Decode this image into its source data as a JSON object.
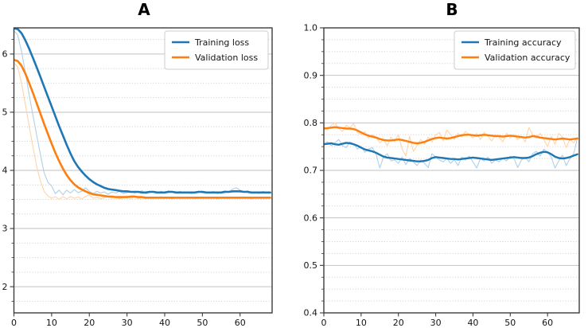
{
  "figure": {
    "background": "#ffffff"
  },
  "chart_data": [
    {
      "type": "line",
      "title": "A",
      "xlabel": "",
      "ylabel": "",
      "xlim": [
        0,
        68.5
      ],
      "ylim": [
        1.55,
        6.45
      ],
      "xticks": [
        0,
        10,
        20,
        30,
        40,
        50,
        60
      ],
      "xtick_labels": [
        "0",
        "10",
        "20",
        "30",
        "40",
        "50",
        "60"
      ],
      "yticks": [
        2,
        3,
        4,
        5,
        6
      ],
      "ytick_labels": [
        "2",
        "3",
        "4",
        "5",
        "6"
      ],
      "y_minor_step": 0.25,
      "grid": "horizontal: solid major, dotted minor",
      "legend_position": "upper right",
      "x": [
        0,
        1,
        2,
        3,
        4,
        5,
        6,
        7,
        8,
        9,
        10,
        11,
        12,
        13,
        14,
        15,
        16,
        17,
        18,
        19,
        20,
        21,
        22,
        23,
        24,
        25,
        26,
        27,
        28,
        29,
        30,
        31,
        32,
        33,
        34,
        35,
        36,
        37,
        38,
        39,
        40,
        41,
        42,
        43,
        44,
        45,
        46,
        47,
        48,
        49,
        50,
        51,
        52,
        53,
        54,
        55,
        56,
        57,
        58,
        59,
        60,
        61,
        62,
        63,
        64,
        65,
        66,
        67,
        68
      ],
      "series": [
        {
          "name": "Training loss raw",
          "color": "#b0cfe7",
          "width": 1.1,
          "in_legend": false,
          "values": [
            6.4,
            6.33,
            6.05,
            5.7,
            5.32,
            4.96,
            4.62,
            4.28,
            3.96,
            3.8,
            3.73,
            3.6,
            3.66,
            3.58,
            3.66,
            3.61,
            3.67,
            3.62,
            3.64,
            3.7,
            3.64,
            3.6,
            3.64,
            3.61,
            3.63,
            3.59,
            3.63,
            3.61,
            3.64,
            3.6,
            3.62,
            3.64,
            3.61,
            3.63,
            3.65,
            3.6,
            3.62,
            3.63,
            3.61,
            3.64,
            3.62,
            3.65,
            3.63,
            3.61,
            3.64,
            3.62,
            3.63,
            3.6,
            3.62,
            3.64,
            3.61,
            3.63,
            3.62,
            3.64,
            3.6,
            3.63,
            3.65,
            3.62,
            3.68,
            3.7,
            3.66,
            3.63,
            3.65,
            3.61,
            3.63,
            3.6,
            3.64,
            3.62,
            3.63
          ]
        },
        {
          "name": "Validation loss raw",
          "color": "#ffd4a9",
          "width": 1.1,
          "in_legend": false,
          "values": [
            5.85,
            5.78,
            5.5,
            5.15,
            4.78,
            4.42,
            4.08,
            3.82,
            3.64,
            3.56,
            3.52,
            3.55,
            3.5,
            3.55,
            3.51,
            3.55,
            3.52,
            3.54,
            3.51,
            3.55,
            3.58,
            3.52,
            3.54,
            3.51,
            3.53,
            3.55,
            3.52,
            3.54,
            3.51,
            3.53,
            3.56,
            3.52,
            3.54,
            3.52,
            3.53,
            3.51,
            3.54,
            3.52,
            3.53,
            3.55,
            3.52,
            3.53,
            3.51,
            3.54,
            3.52,
            3.53,
            3.52,
            3.54,
            3.51,
            3.53,
            3.52,
            3.54,
            3.52,
            3.53,
            3.51,
            3.53,
            3.54,
            3.52,
            3.53,
            3.52,
            3.54,
            3.52,
            3.53,
            3.51,
            3.53,
            3.52,
            3.53,
            3.52,
            3.53
          ]
        },
        {
          "name": "Training loss",
          "color": "#1f77b4",
          "width": 2.6,
          "in_legend": true,
          "values": [
            6.44,
            6.43,
            6.36,
            6.24,
            6.1,
            5.94,
            5.78,
            5.61,
            5.44,
            5.27,
            5.1,
            4.93,
            4.76,
            4.6,
            4.44,
            4.29,
            4.16,
            4.06,
            3.98,
            3.91,
            3.85,
            3.8,
            3.76,
            3.73,
            3.7,
            3.68,
            3.67,
            3.66,
            3.65,
            3.64,
            3.64,
            3.63,
            3.63,
            3.63,
            3.62,
            3.62,
            3.63,
            3.63,
            3.62,
            3.62,
            3.62,
            3.63,
            3.63,
            3.62,
            3.62,
            3.62,
            3.62,
            3.62,
            3.62,
            3.63,
            3.63,
            3.62,
            3.62,
            3.62,
            3.62,
            3.62,
            3.63,
            3.63,
            3.64,
            3.64,
            3.64,
            3.63,
            3.63,
            3.62,
            3.62,
            3.62,
            3.62,
            3.62,
            3.62
          ]
        },
        {
          "name": "Validation loss",
          "color": "#ff7f0e",
          "width": 2.6,
          "in_legend": true,
          "values": [
            5.9,
            5.88,
            5.8,
            5.67,
            5.51,
            5.34,
            5.16,
            4.98,
            4.8,
            4.63,
            4.46,
            4.3,
            4.16,
            4.03,
            3.92,
            3.83,
            3.76,
            3.71,
            3.67,
            3.64,
            3.61,
            3.59,
            3.58,
            3.57,
            3.56,
            3.55,
            3.55,
            3.54,
            3.54,
            3.54,
            3.54,
            3.55,
            3.55,
            3.54,
            3.54,
            3.53,
            3.53,
            3.53,
            3.53,
            3.53,
            3.53,
            3.53,
            3.53,
            3.53,
            3.53,
            3.53,
            3.53,
            3.53,
            3.53,
            3.53,
            3.53,
            3.53,
            3.53,
            3.53,
            3.53,
            3.53,
            3.53,
            3.53,
            3.53,
            3.53,
            3.53,
            3.53,
            3.53,
            3.53,
            3.53,
            3.53,
            3.53,
            3.53,
            3.53
          ]
        }
      ]
    },
    {
      "type": "line",
      "title": "B",
      "xlabel": "",
      "ylabel": "",
      "xlim": [
        0,
        68.5
      ],
      "ylim": [
        0.4,
        1.0
      ],
      "xticks": [
        0,
        10,
        20,
        30,
        40,
        50,
        60
      ],
      "xtick_labels": [
        "0",
        "10",
        "20",
        "30",
        "40",
        "50",
        "60"
      ],
      "yticks": [
        0.4,
        0.5,
        0.6,
        0.7,
        0.8,
        0.9,
        1.0
      ],
      "ytick_labels": [
        "0.4",
        "0.5",
        "0.6",
        "0.7",
        "0.8",
        "0.9",
        "1.0"
      ],
      "y_minor_step": 0.025,
      "grid": "horizontal: solid major, dotted minor",
      "legend_position": "upper right",
      "x": [
        0,
        1,
        2,
        3,
        4,
        5,
        6,
        7,
        8,
        9,
        10,
        11,
        12,
        13,
        14,
        15,
        16,
        17,
        18,
        19,
        20,
        21,
        22,
        23,
        24,
        25,
        26,
        27,
        28,
        29,
        30,
        31,
        32,
        33,
        34,
        35,
        36,
        37,
        38,
        39,
        40,
        41,
        42,
        43,
        44,
        45,
        46,
        47,
        48,
        49,
        50,
        51,
        52,
        53,
        54,
        55,
        56,
        57,
        58,
        59,
        60,
        61,
        62,
        63,
        64,
        65,
        66,
        67,
        68
      ],
      "series": [
        {
          "name": "Training accuracy raw",
          "color": "#b0cfe7",
          "width": 1.1,
          "in_legend": false,
          "values": [
            0.755,
            0.76,
            0.752,
            0.758,
            0.765,
            0.752,
            0.748,
            0.76,
            0.756,
            0.745,
            0.75,
            0.738,
            0.745,
            0.748,
            0.735,
            0.705,
            0.728,
            0.735,
            0.72,
            0.722,
            0.715,
            0.728,
            0.712,
            0.725,
            0.718,
            0.71,
            0.722,
            0.715,
            0.706,
            0.735,
            0.728,
            0.722,
            0.718,
            0.725,
            0.715,
            0.722,
            0.71,
            0.728,
            0.722,
            0.73,
            0.718,
            0.705,
            0.725,
            0.72,
            0.728,
            0.715,
            0.722,
            0.718,
            0.726,
            0.72,
            0.73,
            0.725,
            0.706,
            0.722,
            0.728,
            0.718,
            0.735,
            0.74,
            0.73,
            0.745,
            0.738,
            0.728,
            0.705,
            0.72,
            0.732,
            0.71,
            0.725,
            0.735,
            0.768
          ]
        },
        {
          "name": "Validation accuracy raw",
          "color": "#ffd4a9",
          "width": 1.1,
          "in_legend": false,
          "values": [
            0.79,
            0.785,
            0.795,
            0.8,
            0.788,
            0.782,
            0.795,
            0.79,
            0.798,
            0.78,
            0.775,
            0.782,
            0.768,
            0.775,
            0.77,
            0.758,
            0.765,
            0.752,
            0.77,
            0.76,
            0.775,
            0.745,
            0.73,
            0.772,
            0.74,
            0.752,
            0.765,
            0.755,
            0.77,
            0.76,
            0.775,
            0.78,
            0.762,
            0.785,
            0.775,
            0.765,
            0.778,
            0.77,
            0.782,
            0.775,
            0.768,
            0.778,
            0.765,
            0.78,
            0.772,
            0.762,
            0.775,
            0.77,
            0.76,
            0.778,
            0.768,
            0.775,
            0.765,
            0.772,
            0.76,
            0.79,
            0.775,
            0.768,
            0.778,
            0.765,
            0.75,
            0.772,
            0.755,
            0.778,
            0.77,
            0.748,
            0.765,
            0.758,
            0.77
          ]
        },
        {
          "name": "Training accuracy",
          "color": "#1f77b4",
          "width": 2.4,
          "in_legend": true,
          "values": [
            0.755,
            0.756,
            0.757,
            0.755,
            0.754,
            0.756,
            0.758,
            0.757,
            0.755,
            0.752,
            0.748,
            0.744,
            0.742,
            0.74,
            0.737,
            0.733,
            0.729,
            0.727,
            0.726,
            0.725,
            0.724,
            0.723,
            0.722,
            0.721,
            0.72,
            0.719,
            0.719,
            0.72,
            0.722,
            0.726,
            0.728,
            0.727,
            0.726,
            0.725,
            0.724,
            0.724,
            0.723,
            0.724,
            0.725,
            0.726,
            0.727,
            0.726,
            0.725,
            0.724,
            0.723,
            0.722,
            0.723,
            0.724,
            0.725,
            0.726,
            0.727,
            0.728,
            0.727,
            0.726,
            0.726,
            0.727,
            0.73,
            0.734,
            0.737,
            0.739,
            0.738,
            0.734,
            0.729,
            0.726,
            0.725,
            0.726,
            0.728,
            0.731,
            0.734
          ]
        },
        {
          "name": "Validation accuracy",
          "color": "#ff7f0e",
          "width": 2.4,
          "in_legend": true,
          "values": [
            0.788,
            0.789,
            0.79,
            0.791,
            0.79,
            0.789,
            0.788,
            0.788,
            0.787,
            0.784,
            0.78,
            0.776,
            0.773,
            0.771,
            0.769,
            0.766,
            0.764,
            0.763,
            0.763,
            0.764,
            0.765,
            0.764,
            0.762,
            0.76,
            0.758,
            0.757,
            0.758,
            0.76,
            0.763,
            0.766,
            0.768,
            0.769,
            0.768,
            0.767,
            0.768,
            0.77,
            0.772,
            0.774,
            0.775,
            0.775,
            0.774,
            0.773,
            0.774,
            0.775,
            0.774,
            0.773,
            0.772,
            0.772,
            0.771,
            0.772,
            0.773,
            0.772,
            0.771,
            0.77,
            0.769,
            0.77,
            0.772,
            0.771,
            0.769,
            0.768,
            0.767,
            0.766,
            0.765,
            0.766,
            0.767,
            0.766,
            0.765,
            0.766,
            0.767
          ]
        }
      ]
    }
  ]
}
